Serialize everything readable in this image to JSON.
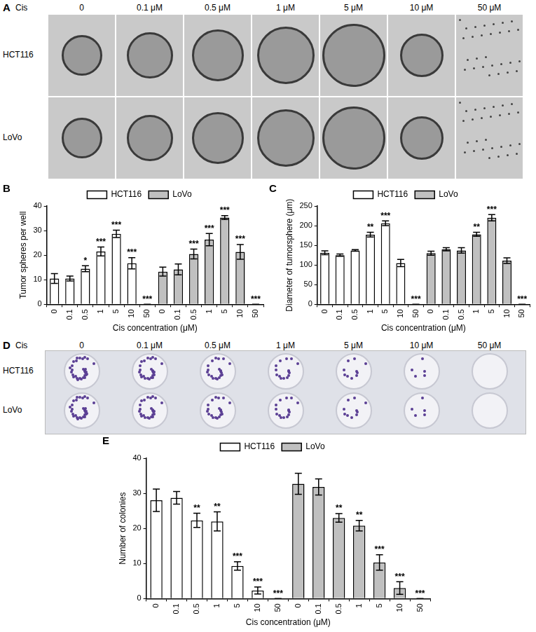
{
  "figure_panels": {
    "A": {
      "panel": "A",
      "header": "Cis",
      "columns": [
        "0",
        "0.1 μM",
        "0.5 μM",
        "1 μM",
        "5 μM",
        "10 μM",
        "50 μM"
      ],
      "rows": [
        "HCT116",
        "LoVo"
      ]
    },
    "D": {
      "panel": "D",
      "header": "Cis",
      "columns": [
        "0",
        "0.1 μM",
        "0.5 μM",
        "1 μM",
        "5 μM",
        "10 μM",
        "50 μM"
      ],
      "rows": [
        "HCT116",
        "LoVo"
      ]
    }
  },
  "chart_data": [
    {
      "panel": "B",
      "type": "bar",
      "categories": [
        "0",
        "0.1",
        "0.5",
        "1",
        "5",
        "10",
        "50",
        "0",
        "0.1",
        "0.5",
        "1",
        "5",
        "10",
        "50"
      ],
      "x_label": "Cis concentration (μM)",
      "y_label": "Tumor spheres per well",
      "ylim": [
        0,
        40
      ],
      "yticks": [
        0,
        10,
        20,
        30,
        40
      ],
      "grid": false,
      "legend": "top",
      "series": [
        {
          "name": "HCT116",
          "color": "#ffffff",
          "values": [
            10.5,
            10.5,
            14.5,
            21.5,
            28.7,
            16.7,
            0,
            null,
            null,
            null,
            null,
            null,
            null,
            null
          ],
          "errors": [
            2,
            1,
            1.2,
            1.8,
            1.5,
            2.3,
            0,
            null,
            null,
            null,
            null,
            null,
            null,
            null
          ],
          "significance": [
            null,
            null,
            "*",
            "***",
            "***",
            "***",
            "***",
            null,
            null,
            null,
            null,
            null,
            null,
            null
          ]
        },
        {
          "name": "LoVo",
          "color": "#c0c0c0",
          "values": [
            null,
            null,
            null,
            null,
            null,
            null,
            null,
            13.3,
            14.2,
            20.5,
            26.3,
            35.3,
            21.3,
            0
          ],
          "errors": [
            null,
            null,
            null,
            null,
            null,
            null,
            null,
            1.8,
            2.2,
            2,
            2.5,
            0.8,
            3,
            0
          ],
          "significance": [
            null,
            null,
            null,
            null,
            null,
            null,
            null,
            null,
            null,
            "***",
            "***",
            "***",
            "***",
            "***"
          ]
        }
      ]
    },
    {
      "panel": "C",
      "type": "bar",
      "categories": [
        "0",
        "0.1",
        "0.5",
        "1",
        "5",
        "10",
        "50",
        "0",
        "0.1",
        "0.5",
        "1",
        "5",
        "10",
        "50"
      ],
      "x_label": "Cis concentration (μM)",
      "y_label": "Diameter of tumorsphere (μm)",
      "ylim": [
        0,
        250
      ],
      "yticks": [
        0,
        50,
        100,
        150,
        200,
        250
      ],
      "grid": false,
      "legend": "top",
      "series": [
        {
          "name": "HCT116",
          "color": "#ffffff",
          "values": [
            131,
            125,
            137,
            177,
            206,
            105,
            0,
            null,
            null,
            null,
            null,
            null,
            null,
            null
          ],
          "errors": [
            5,
            3,
            2,
            6,
            6,
            9,
            0,
            null,
            null,
            null,
            null,
            null,
            null,
            null
          ],
          "significance": [
            null,
            null,
            null,
            "**",
            "***",
            null,
            "***",
            null,
            null,
            null,
            null,
            null,
            null,
            null
          ]
        },
        {
          "name": "LoVo",
          "color": "#c0c0c0",
          "values": [
            null,
            null,
            null,
            null,
            null,
            null,
            null,
            130,
            140,
            137,
            178,
            220,
            111,
            0
          ],
          "errors": [
            null,
            null,
            null,
            null,
            null,
            null,
            null,
            5,
            4,
            7,
            5,
            8,
            7,
            0
          ],
          "significance": [
            null,
            null,
            null,
            null,
            null,
            null,
            null,
            null,
            null,
            null,
            "**",
            "***",
            null,
            "***"
          ]
        }
      ]
    },
    {
      "panel": "E",
      "type": "bar",
      "categories": [
        "0",
        "0.1",
        "0.5",
        "1",
        "5",
        "10",
        "50",
        "0",
        "0.1",
        "0.5",
        "1",
        "5",
        "10",
        "50"
      ],
      "x_label": "Cis concentration (μM)",
      "y_label": "Number of colonies",
      "ylim": [
        0,
        40
      ],
      "yticks": [
        0,
        10,
        20,
        30,
        40
      ],
      "grid": false,
      "legend": "top",
      "series": [
        {
          "name": "HCT116",
          "color": "#ffffff",
          "values": [
            28,
            28.7,
            22.3,
            22,
            9.3,
            2.3,
            0,
            null,
            null,
            null,
            null,
            null,
            null,
            null
          ],
          "errors": [
            3.2,
            1.8,
            2,
            2.7,
            1.2,
            1,
            0,
            null,
            null,
            null,
            null,
            null,
            null,
            null
          ],
          "significance": [
            null,
            null,
            "**",
            "**",
            "***",
            "***",
            "***",
            null,
            null,
            null,
            null,
            null,
            null,
            null
          ]
        },
        {
          "name": "LoVo",
          "color": "#c0c0c0",
          "values": [
            null,
            null,
            null,
            null,
            null,
            null,
            null,
            32.7,
            31.8,
            23,
            20.8,
            10.3,
            3,
            0
          ],
          "errors": [
            null,
            null,
            null,
            null,
            null,
            null,
            null,
            3,
            2.3,
            1.2,
            1.5,
            2.2,
            1.8,
            0
          ],
          "significance": [
            null,
            null,
            null,
            null,
            null,
            null,
            null,
            null,
            null,
            "**",
            "**",
            "***",
            "***",
            "***"
          ]
        }
      ]
    }
  ]
}
